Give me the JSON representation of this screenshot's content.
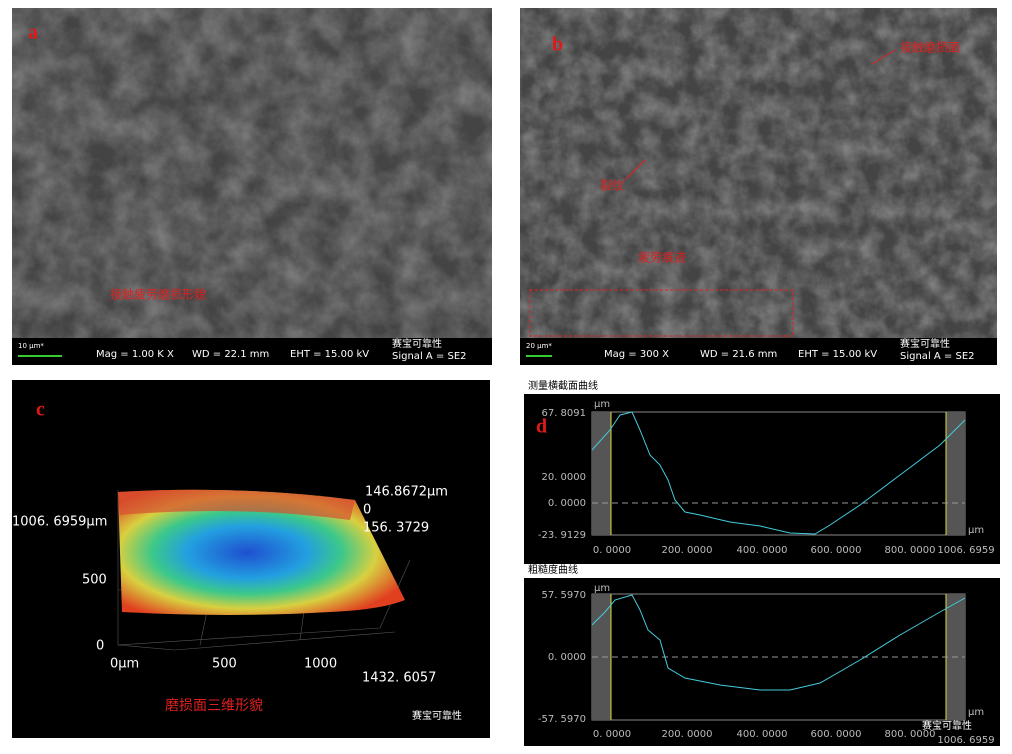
{
  "panels": {
    "a": {
      "letter": "a",
      "label": "接触疲劳磨损形貌",
      "scale": "10 μm*",
      "mag": "Mag =   1.00 K X",
      "wd": "WD = 22.1 mm",
      "eht": "EHT = 15.00 kV",
      "signal": "Signal A = SE2",
      "watermark": "赛宝可靠性"
    },
    "b": {
      "letter": "b",
      "label_surface": "接触磨损面",
      "label_crack": "裂纹",
      "label_trace": "疲劳痕迹",
      "scale": "20 μm*",
      "mag": "Mag =   300 X",
      "wd": "WD = 21.6 mm",
      "eht": "EHT = 15.00 kV",
      "signal": "Signal A = SE2",
      "watermark": "赛宝可靠性"
    },
    "c": {
      "letter": "c",
      "z_top": "146.8672µm",
      "z_zero": "0",
      "z_bottom": "156. 3729",
      "y_max": "1006. 6959µm",
      "y_mid": "500",
      "y_zero": "0",
      "x_zero": "0µm",
      "x_500": "500",
      "x_1000": "1000",
      "x_max": "1432. 6057",
      "caption": "磨损面三维形貌",
      "watermark": "赛宝可靠性"
    },
    "d": {
      "letter": "d",
      "plot1": {
        "title": "测量横截面曲线",
        "yunit": "µm",
        "yticks": [
          "67. 8091",
          "20. 0000",
          "0. 0000",
          "-23. 9129"
        ],
        "xunit": "µm",
        "xticks": [
          "0. 0000",
          "200. 0000",
          "400. 0000",
          "600. 0000",
          "800. 0000",
          "1006. 6959"
        ]
      },
      "plot2": {
        "title": "粗糙度曲线",
        "yunit": "µm",
        "yticks": [
          "57. 5970",
          "0. 0000",
          "-57. 5970"
        ],
        "xunit": "µm",
        "xticks": [
          "0. 0000",
          "200. 0000",
          "400. 0000",
          "600. 0000",
          "800. 0000",
          "1006. 6959"
        ]
      },
      "watermark": "赛宝可靠性"
    }
  }
}
